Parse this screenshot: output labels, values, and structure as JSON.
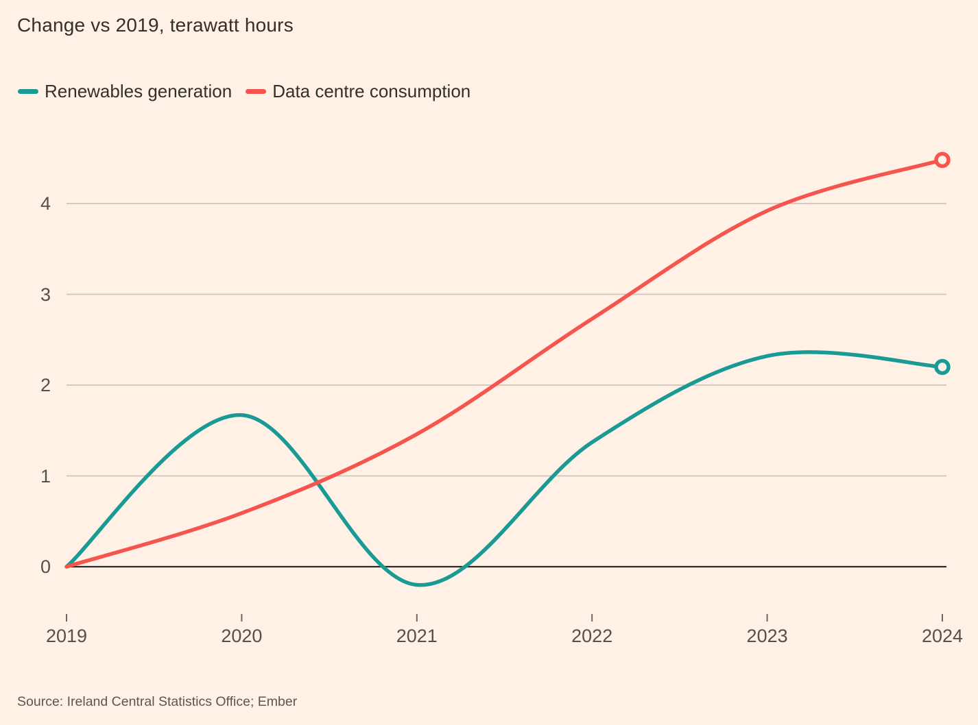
{
  "title": "Change vs 2019, terawatt hours",
  "legend": [
    {
      "label": "Renewables generation",
      "color": "#1A9A94"
    },
    {
      "label": "Data centre consumption",
      "color": "#F5554C"
    }
  ],
  "source": "Source: Ireland Central Statistics Office; Ember",
  "colors": {
    "background": "#FFF1E5",
    "teal_series": "#1A9A94",
    "coral_series": "#F5554C",
    "gridline": "#CFC4BA",
    "zero_line": "#2E2A26",
    "tick_mark": "#6E6862",
    "axis_text": "#54504B",
    "title_text": "#332F2B"
  },
  "chart_data": {
    "type": "line",
    "title": "Change vs 2019, terawatt hours",
    "xlabel": "",
    "ylabel": "terawatt hours (change vs 2019)",
    "x": [
      2019,
      2020,
      2021,
      2022,
      2023,
      2024
    ],
    "xticks": [
      2019,
      2020,
      2021,
      2022,
      2023,
      2024
    ],
    "yticks": [
      0,
      1,
      2,
      3,
      4
    ],
    "ylim": [
      -0.3,
      4.6
    ],
    "grid": "horizontal",
    "curve": "smooth",
    "end_markers": "open-circle-on-last-point",
    "legend_position": "top-left",
    "series": [
      {
        "name": "Renewables generation",
        "color": "#1A9A94",
        "values": [
          0,
          1.67,
          -0.2,
          1.37,
          2.32,
          2.2
        ]
      },
      {
        "name": "Data centre consumption",
        "color": "#F5554C",
        "values": [
          0,
          0.59,
          1.46,
          2.73,
          3.92,
          4.48
        ]
      }
    ]
  }
}
